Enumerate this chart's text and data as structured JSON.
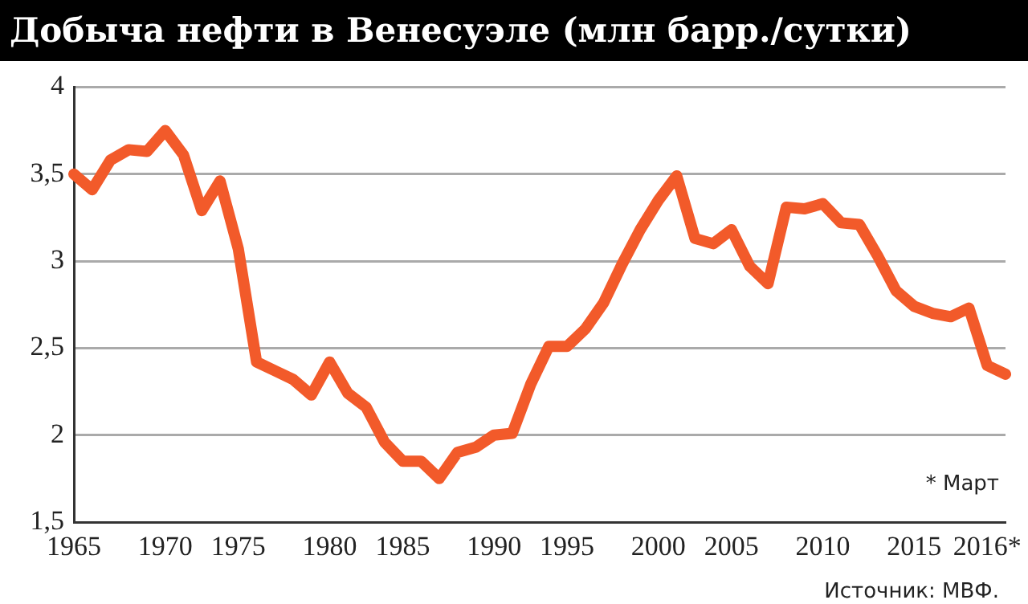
{
  "chart_data": {
    "type": "line",
    "title": "Добыча нефти в Венесуэле (млн барр./сутки)",
    "categories": [
      "1965",
      null,
      null,
      null,
      null,
      "1970",
      null,
      null,
      null,
      "1975",
      null,
      null,
      null,
      null,
      "1980",
      null,
      null,
      null,
      "1985",
      null,
      null,
      null,
      null,
      "1990",
      null,
      null,
      null,
      "1995",
      null,
      null,
      null,
      null,
      "2000",
      null,
      null,
      null,
      "2005",
      null,
      null,
      null,
      null,
      "2010",
      null,
      null,
      null,
      null,
      "2015",
      null,
      null,
      null,
      "2016*",
      null
    ],
    "series": [
      {
        "color": "#f25a2a",
        "values": [
          3.5,
          3.41,
          3.58,
          3.64,
          3.63,
          3.75,
          3.61,
          3.29,
          3.46,
          3.07,
          2.42,
          2.37,
          2.32,
          2.23,
          2.42,
          2.24,
          2.16,
          1.96,
          1.85,
          1.85,
          1.75,
          1.9,
          1.93,
          2.0,
          2.01,
          2.29,
          2.51,
          2.51,
          2.61,
          2.76,
          2.98,
          3.18,
          3.35,
          3.49,
          3.13,
          3.1,
          3.18,
          2.97,
          2.87,
          3.31,
          3.3,
          3.33,
          3.22,
          3.21,
          3.03,
          2.83,
          2.74,
          2.7,
          2.68,
          2.73,
          2.4,
          2.35
        ]
      }
    ],
    "ylim": [
      1.5,
      4
    ],
    "yticks": [
      {
        "value": 1.5,
        "label": "1,5"
      },
      {
        "value": 2,
        "label": "2"
      },
      {
        "value": 2.5,
        "label": "2,5"
      },
      {
        "value": 3,
        "label": "3"
      },
      {
        "value": 3.5,
        "label": "3,5"
      },
      {
        "value": 4,
        "label": "4"
      }
    ],
    "grid": "y",
    "marker": "none",
    "line_style": "solid",
    "annotations": [
      "* Март",
      "Источник: МВФ."
    ]
  }
}
